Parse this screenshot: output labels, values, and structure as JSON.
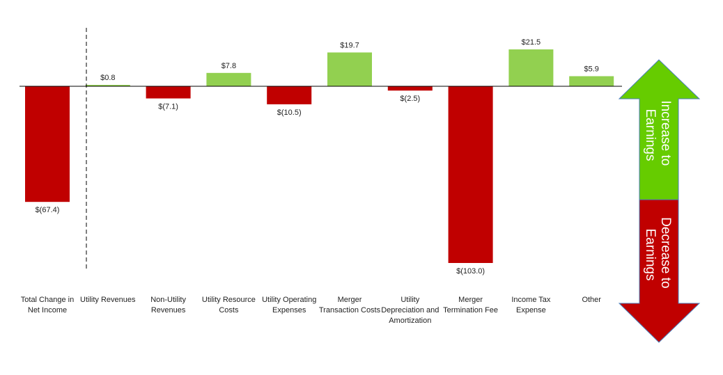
{
  "chart_data": {
    "type": "bar",
    "subtype": "waterfall-style change bars",
    "categories": [
      [
        "Total Change in",
        "Net Income"
      ],
      [
        "Utility Revenues"
      ],
      [
        "Non-Utility",
        "Revenues"
      ],
      [
        "Utility Resource",
        "Costs"
      ],
      [
        "Utility Operating",
        "Expenses"
      ],
      [
        "Merger",
        "Transaction Costs"
      ],
      [
        "Utility",
        "Depreciation and",
        "Amortization"
      ],
      [
        "Merger",
        "Termination Fee"
      ],
      [
        "Income Tax",
        "Expense"
      ],
      [
        "Other"
      ]
    ],
    "values": [
      -67.4,
      0.8,
      -7.1,
      7.8,
      -10.5,
      19.7,
      -2.5,
      -103.0,
      21.5,
      5.9
    ],
    "value_labels": [
      "$(67.4)",
      "$0.8",
      "$(7.1)",
      "$7.8",
      "$(10.5)",
      "$19.7",
      "$(2.5)",
      "$(103.0)",
      "$21.5",
      "$5.9"
    ],
    "ylim": [
      -103,
      21.5
    ],
    "grid": false,
    "separator_after_index": 0,
    "colors": {
      "positive": "#92d050",
      "negative": "#c00000"
    }
  },
  "legend_arrow": {
    "increase_label": [
      "Increase to",
      "Earnings"
    ],
    "decrease_label": [
      "Decrease to",
      "Earnings"
    ],
    "increase_color": "#66cc00",
    "decrease_color": "#c00000",
    "border_color": "#4a7ebb"
  }
}
